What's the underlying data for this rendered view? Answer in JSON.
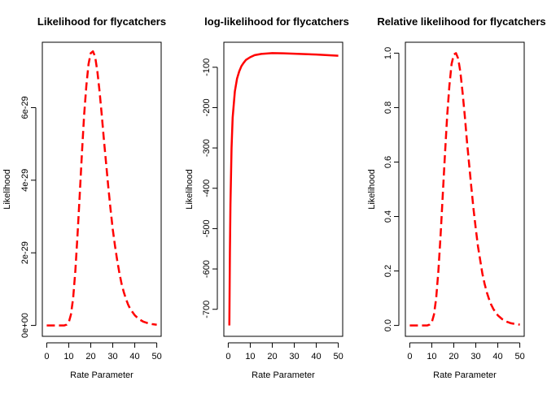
{
  "chart_data": [
    {
      "type": "line",
      "title": "Likelihood for flycatchers",
      "xlabel": "Rate Parameter",
      "ylabel": "Likelihood",
      "xlim": [
        0,
        50
      ],
      "ylim": [
        0,
        7.5e-29
      ],
      "xticks": [
        0,
        10,
        20,
        30,
        40,
        50
      ],
      "xtick_labels": [
        "0",
        "10",
        "20",
        "30",
        "40",
        "50"
      ],
      "yticks": [
        0,
        2e-29,
        4e-29,
        6e-29
      ],
      "ytick_labels": [
        "0e+00",
        "2e-29",
        "4e-29",
        "6e-29"
      ],
      "grid": false,
      "line_style": "dashed",
      "line_color": "#ff0000",
      "series": [
        {
          "x": [
            0,
            4,
            8,
            9,
            10,
            11,
            12,
            13,
            14,
            15,
            16,
            17,
            18,
            19,
            20,
            21,
            22,
            23,
            24,
            25,
            26,
            27,
            28,
            29,
            30,
            31,
            32,
            33,
            34,
            35,
            36,
            37,
            38,
            40,
            42,
            44,
            46,
            48,
            50
          ],
          "y": [
            0,
            0,
            0,
            2e-31,
            8e-31,
            3e-30,
            7.5e-30,
            1.5e-29,
            2.5e-29,
            3.6e-29,
            4.75e-29,
            5.8e-29,
            6.6e-29,
            7.2e-29,
            7.5e-29,
            7.55e-29,
            7.4e-29,
            7e-29,
            6.45e-29,
            5.8e-29,
            5.1e-29,
            4.45e-29,
            3.8e-29,
            3.2e-29,
            2.65e-29,
            2.2e-29,
            1.8e-29,
            1.45e-29,
            1.15e-29,
            9.2e-30,
            7.3e-30,
            5.7e-30,
            4.5e-30,
            2.8e-30,
            1.7e-30,
            1e-30,
            6e-31,
            3.5e-31,
            2e-31
          ]
        }
      ]
    },
    {
      "type": "line",
      "title": "log-likelihood for flycatchers",
      "xlabel": "Rate Parameter",
      "ylabel": "Likelihood",
      "xlim": [
        0,
        50
      ],
      "ylim": [
        -740,
        -65
      ],
      "xticks": [
        0,
        10,
        20,
        30,
        40,
        50
      ],
      "xtick_labels": [
        "0",
        "10",
        "20",
        "30",
        "40",
        "50"
      ],
      "yticks": [
        -700,
        -600,
        -500,
        -400,
        -300,
        -200,
        -100
      ],
      "ytick_labels": [
        "-700",
        "-600",
        "-500",
        "-400",
        "-300",
        "-200",
        "-100"
      ],
      "grid": false,
      "line_style": "solid",
      "line_color": "#ff0000",
      "series": [
        {
          "x": [
            0.5,
            0.75,
            1,
            1.5,
            2,
            3,
            4,
            5,
            6,
            7,
            8,
            10,
            12,
            15,
            20,
            25,
            30,
            35,
            40,
            45,
            50
          ],
          "y": [
            -740,
            -560,
            -440,
            -300,
            -225,
            -160,
            -128,
            -110,
            -97,
            -89,
            -82,
            -75,
            -70,
            -67,
            -65,
            -65.5,
            -66.5,
            -67.5,
            -68.5,
            -70,
            -71.5
          ]
        }
      ]
    },
    {
      "type": "line",
      "title": "Relative likelihood for flycatchers",
      "xlabel": "Rate Parameter",
      "ylabel": "Likelihood",
      "xlim": [
        0,
        50
      ],
      "ylim": [
        0,
        1.0
      ],
      "xticks": [
        0,
        10,
        20,
        30,
        40,
        50
      ],
      "xtick_labels": [
        "0",
        "10",
        "20",
        "30",
        "40",
        "50"
      ],
      "yticks": [
        0,
        0.2,
        0.4,
        0.6,
        0.8,
        1.0
      ],
      "ytick_labels": [
        "0.0",
        "0.2",
        "0.4",
        "0.6",
        "0.8",
        "1.0"
      ],
      "grid": false,
      "line_style": "dashed",
      "line_color": "#ff0000",
      "series": [
        {
          "x": [
            0,
            4,
            8,
            9,
            10,
            11,
            12,
            13,
            14,
            15,
            16,
            17,
            18,
            19,
            20,
            21,
            22,
            23,
            24,
            25,
            26,
            27,
            28,
            29,
            30,
            31,
            32,
            33,
            34,
            35,
            36,
            37,
            38,
            40,
            42,
            44,
            46,
            48,
            50
          ],
          "y": [
            0,
            0,
            0,
            0.003,
            0.011,
            0.04,
            0.1,
            0.2,
            0.33,
            0.48,
            0.63,
            0.77,
            0.88,
            0.96,
            0.995,
            1.0,
            0.98,
            0.93,
            0.855,
            0.77,
            0.675,
            0.59,
            0.505,
            0.425,
            0.355,
            0.29,
            0.24,
            0.19,
            0.153,
            0.122,
            0.097,
            0.076,
            0.06,
            0.037,
            0.023,
            0.014,
            0.008,
            0.005,
            0.003
          ]
        }
      ]
    }
  ]
}
